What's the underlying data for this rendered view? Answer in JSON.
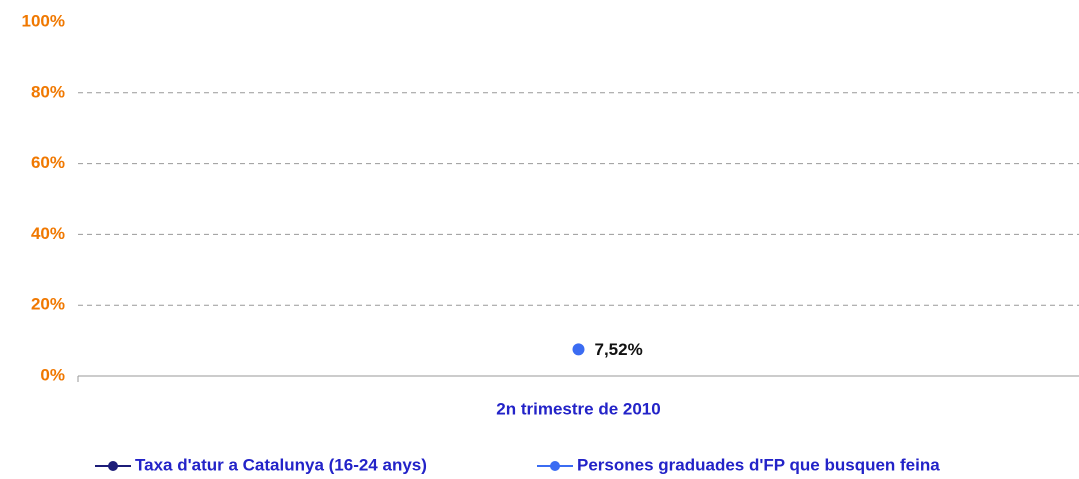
{
  "chart_data": {
    "type": "line",
    "categories": [
      "2n trimestre de 2010"
    ],
    "series": [
      {
        "name": "Taxa d'atur a Catalunya (16-24 anys)",
        "color": "#1c1c78",
        "values": [
          null
        ]
      },
      {
        "name": "Persones graduades d'FP que busquen feina",
        "color": "#3b6cf2",
        "values": [
          7.52
        ],
        "value_labels": [
          "7,52%"
        ]
      }
    ],
    "ylim": [
      0,
      100
    ],
    "yticks": [
      {
        "value": 0,
        "label": "0%"
      },
      {
        "value": 20,
        "label": "20%"
      },
      {
        "value": 40,
        "label": "40%"
      },
      {
        "value": 60,
        "label": "60%"
      },
      {
        "value": 80,
        "label": "80%"
      },
      {
        "value": 100,
        "label": "100%"
      }
    ],
    "grid": true
  }
}
